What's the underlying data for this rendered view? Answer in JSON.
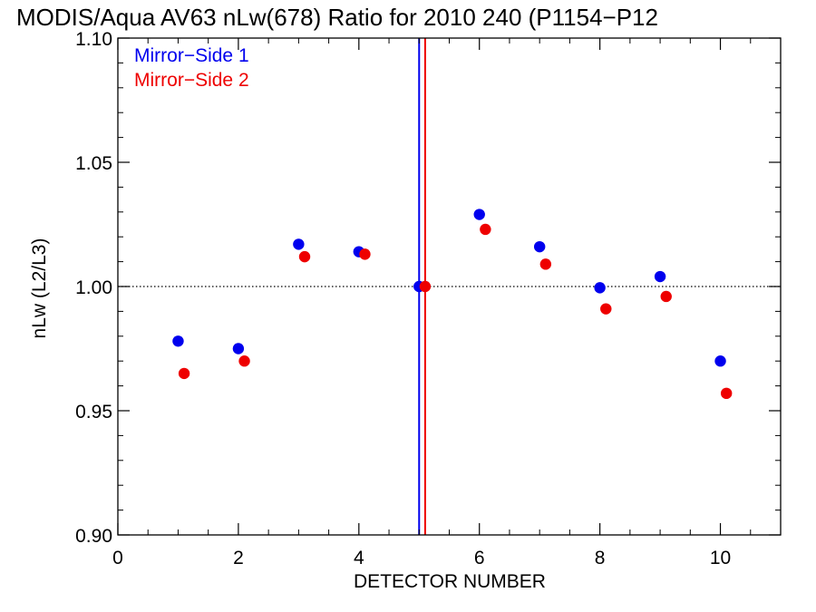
{
  "chart_data": {
    "type": "scatter",
    "title": "MODIS/Aqua AV63 nLw(678) Ratio for 2010 240 (P1154−P12",
    "xlabel": "DETECTOR NUMBER",
    "ylabel": "nLw (L2/L3)",
    "xlim": [
      0,
      11
    ],
    "ylim": [
      0.9,
      1.1
    ],
    "x_ticks": [
      0,
      2,
      4,
      6,
      8,
      10
    ],
    "x_tick_labels": [
      "0",
      "2",
      "4",
      "6",
      "8",
      "10"
    ],
    "y_ticks": [
      0.9,
      0.95,
      1.0,
      1.05,
      1.1
    ],
    "y_tick_labels": [
      "0.90",
      "0.95",
      "1.00",
      "1.05",
      "1.10"
    ],
    "reference_line_y": 1.0,
    "vertical_markers": [
      {
        "series": "Mirror−Side 1",
        "x": 5.0,
        "color": "#0000ee"
      },
      {
        "series": "Mirror−Side 2",
        "x": 5.1,
        "color": "#ee0000"
      }
    ],
    "legend_position": "top-left",
    "series": [
      {
        "name": "Mirror−Side 1",
        "color": "#0000ee",
        "x": [
          1,
          2,
          3,
          4,
          5,
          6,
          7,
          8,
          9,
          10
        ],
        "y": [
          0.978,
          0.975,
          1.017,
          1.014,
          1.0,
          1.029,
          1.016,
          0.9995,
          1.004,
          0.97
        ]
      },
      {
        "name": "Mirror−Side 2",
        "color": "#ee0000",
        "x": [
          1.1,
          2.1,
          3.1,
          4.1,
          5.1,
          6.1,
          7.1,
          8.1,
          9.1,
          10.1
        ],
        "y": [
          0.965,
          0.97,
          1.012,
          1.013,
          1.0,
          1.023,
          1.009,
          0.991,
          0.996,
          0.957
        ]
      }
    ]
  }
}
